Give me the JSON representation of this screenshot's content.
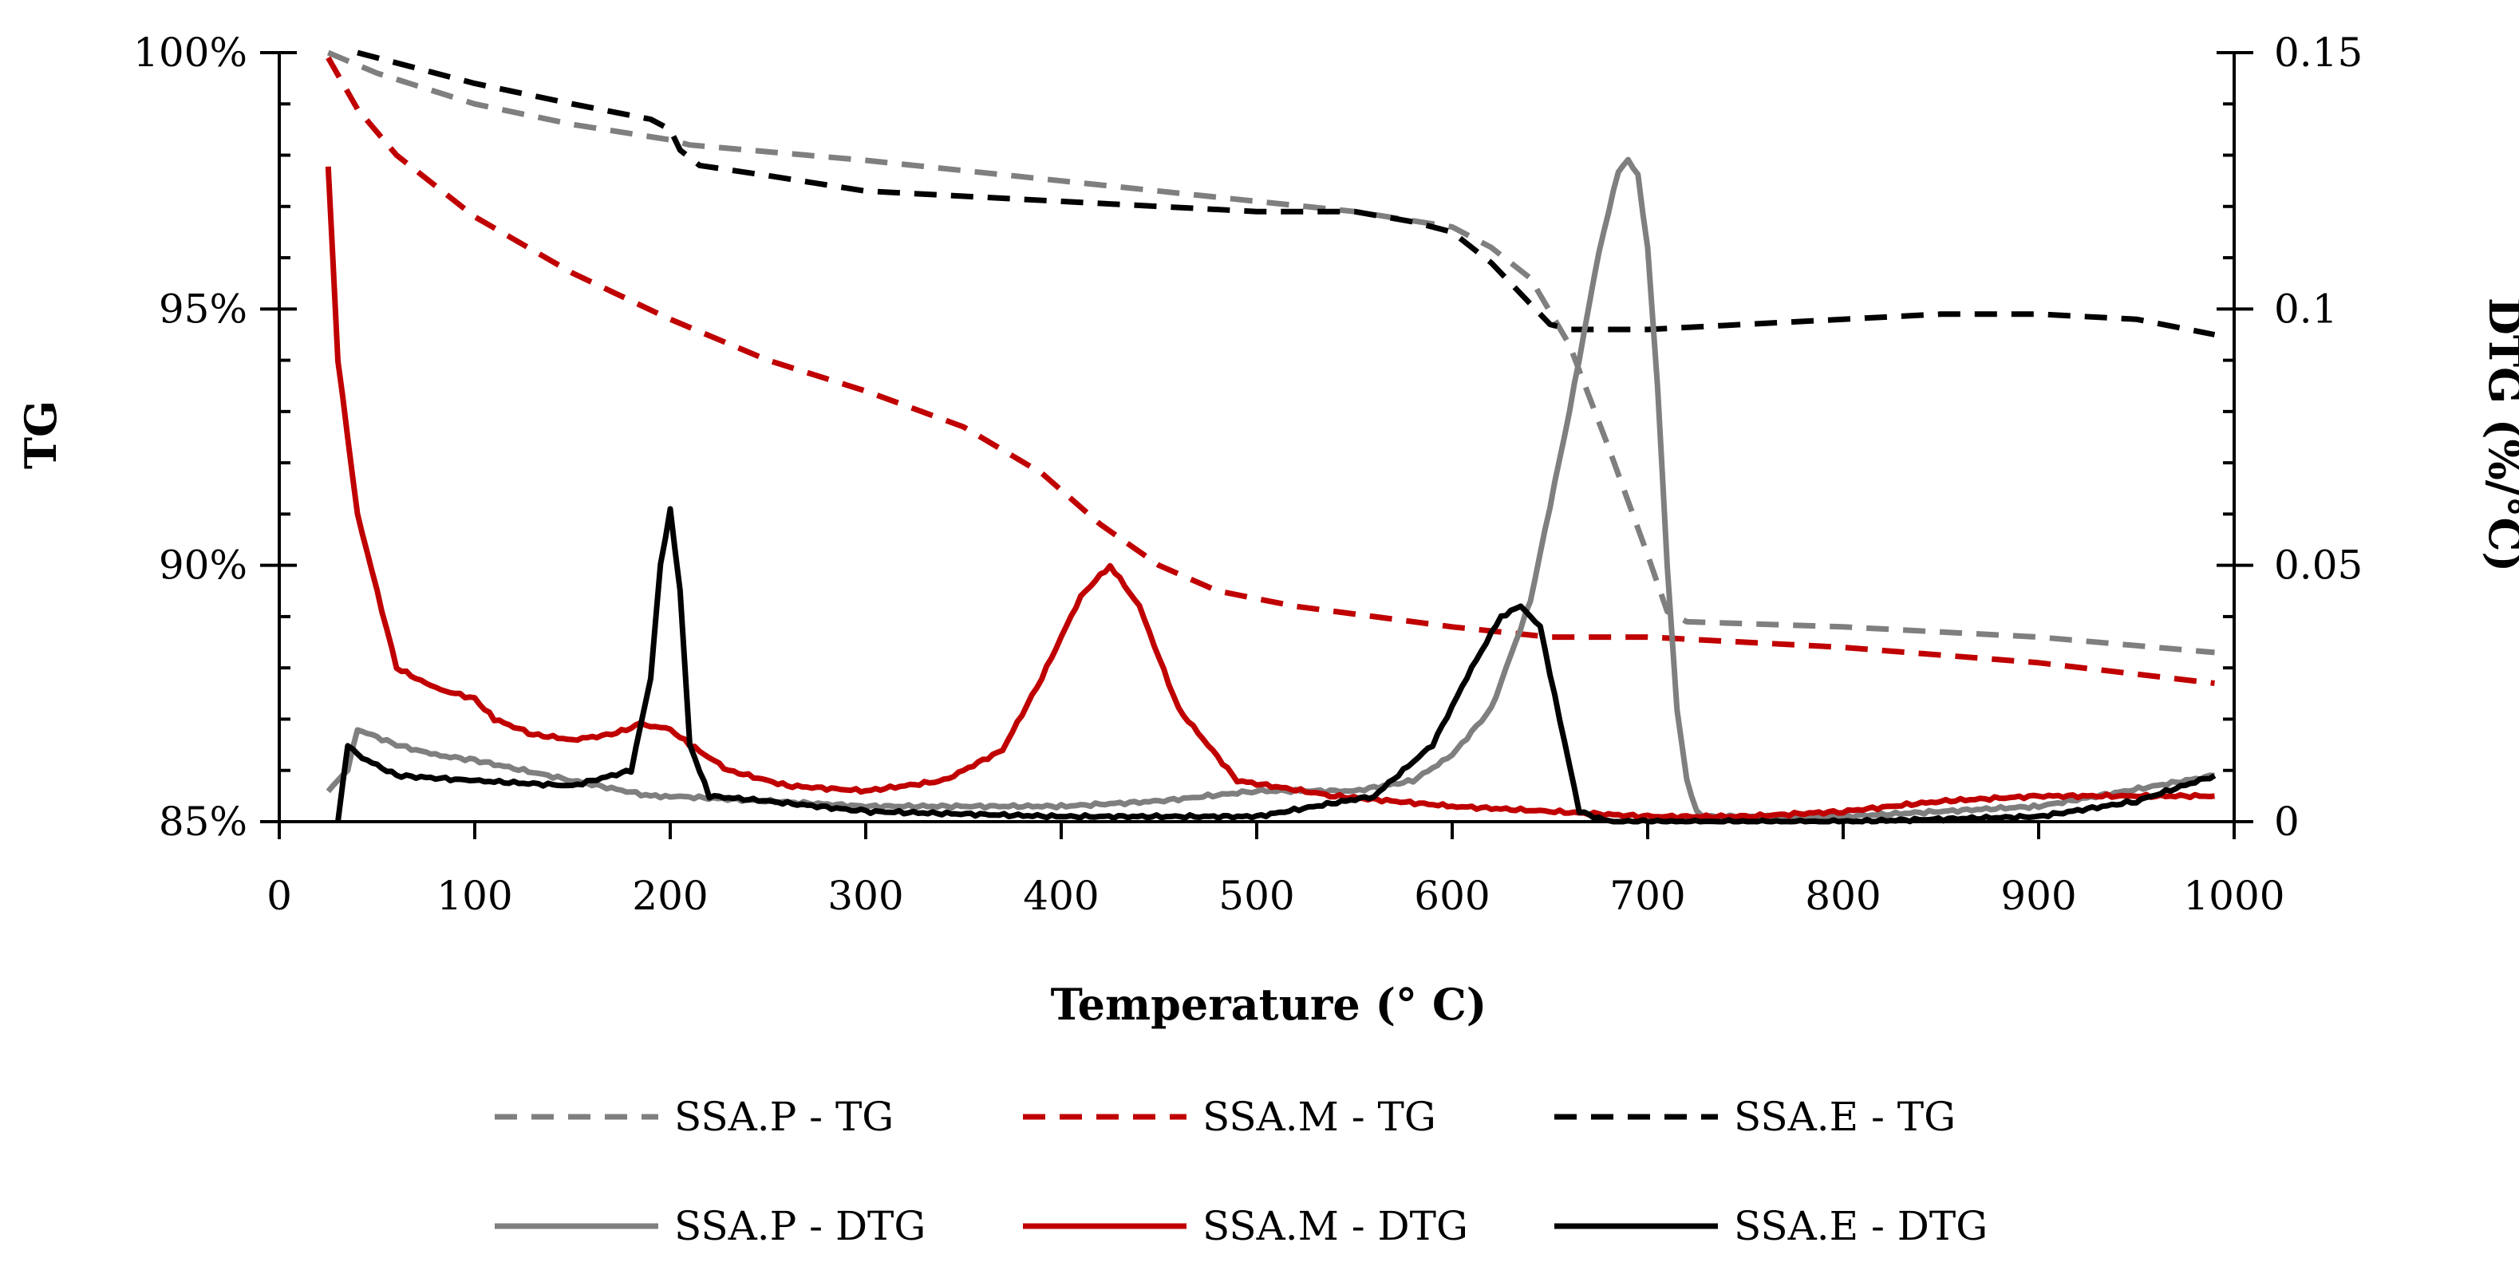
{
  "chart_data": {
    "type": "line",
    "title": "",
    "xlabel": "Temperature (° C)",
    "ylabel": "TG",
    "y2label": "DTG (%/°C)",
    "xlim": [
      0,
      1000
    ],
    "ylim": [
      85,
      100
    ],
    "y2lim": [
      0,
      0.15
    ],
    "xticks": [
      0,
      100,
      200,
      300,
      400,
      500,
      600,
      700,
      800,
      900,
      1000
    ],
    "xtick_labels": [
      "0",
      "100",
      "200",
      "300",
      "400",
      "500",
      "600",
      "700",
      "800",
      "900",
      "1000"
    ],
    "yticks": [
      85,
      90,
      95,
      100
    ],
    "ytick_labels": [
      "85%",
      "90%",
      "95%",
      "100%"
    ],
    "y2ticks": [
      0,
      0.05,
      0.1,
      0.15
    ],
    "y2tick_labels": [
      "0",
      "0.05",
      "0.1",
      "0.15"
    ],
    "grid": false,
    "legend_position": "bottom",
    "series": [
      {
        "name": "SSA.P - TG",
        "axis": "left",
        "color": "#7f7f7f",
        "style": "dashed",
        "x": [
          25,
          50,
          100,
          150,
          200,
          210,
          300,
          400,
          500,
          550,
          600,
          620,
          640,
          660,
          680,
          700,
          710,
          720,
          800,
          900,
          990
        ],
        "y": [
          100,
          99.6,
          99.0,
          98.6,
          98.3,
          98.2,
          97.9,
          97.5,
          97.1,
          96.9,
          96.6,
          96.2,
          95.6,
          94.3,
          92.3,
          90.2,
          89.1,
          88.9,
          88.8,
          88.6,
          88.3
        ]
      },
      {
        "name": "SSA.M - TG",
        "axis": "left",
        "color": "#c00000",
        "style": "dashed",
        "x": [
          25,
          40,
          60,
          100,
          150,
          200,
          250,
          300,
          350,
          390,
          420,
          450,
          480,
          520,
          560,
          600,
          650,
          700,
          800,
          900,
          990
        ],
        "y": [
          99.9,
          98.9,
          98.0,
          96.8,
          95.7,
          94.8,
          94.0,
          93.4,
          92.7,
          91.8,
          90.8,
          90.0,
          89.5,
          89.2,
          89.0,
          88.8,
          88.6,
          88.6,
          88.4,
          88.1,
          87.7
        ]
      },
      {
        "name": "SSA.E - TG",
        "axis": "left",
        "color": "#000000",
        "style": "dashed",
        "x": [
          40,
          100,
          150,
          190,
          200,
          205,
          215,
          250,
          300,
          400,
          500,
          550,
          580,
          600,
          620,
          640,
          650,
          660,
          700,
          800,
          850,
          900,
          950,
          990
        ],
        "y": [
          100,
          99.4,
          99.0,
          98.7,
          98.5,
          98.1,
          97.8,
          97.6,
          97.3,
          97.1,
          96.9,
          96.9,
          96.7,
          96.5,
          95.9,
          95.1,
          94.7,
          94.6,
          94.6,
          94.8,
          94.9,
          94.9,
          94.8,
          94.5
        ]
      },
      {
        "name": "SSA.P - DTG",
        "axis": "right",
        "color": "#7f7f7f",
        "style": "solid",
        "x": [
          25,
          35,
          40,
          60,
          80,
          100,
          150,
          190,
          200,
          300,
          400,
          450,
          500,
          550,
          580,
          600,
          620,
          640,
          660,
          675,
          685,
          690,
          695,
          700,
          705,
          710,
          715,
          720,
          725,
          730,
          800,
          900,
          990
        ],
        "y": [
          0.006,
          0.01,
          0.018,
          0.015,
          0.013,
          0.012,
          0.008,
          0.005,
          0.005,
          0.003,
          0.003,
          0.004,
          0.006,
          0.006,
          0.008,
          0.013,
          0.022,
          0.043,
          0.08,
          0.111,
          0.127,
          0.129,
          0.126,
          0.112,
          0.085,
          0.05,
          0.022,
          0.008,
          0.002,
          0.001,
          0.001,
          0.003,
          0.009
        ]
      },
      {
        "name": "SSA.M - DTG",
        "axis": "right",
        "color": "#c00000",
        "style": "solid",
        "x": [
          25,
          30,
          40,
          60,
          80,
          100,
          110,
          130,
          150,
          170,
          185,
          200,
          210,
          230,
          260,
          300,
          340,
          370,
          390,
          410,
          425,
          440,
          460,
          490,
          540,
          600,
          650,
          700,
          750,
          800,
          850,
          900,
          950,
          990
        ],
        "y": [
          0.128,
          0.09,
          0.06,
          0.03,
          0.026,
          0.024,
          0.02,
          0.017,
          0.016,
          0.017,
          0.019,
          0.018,
          0.015,
          0.01,
          0.007,
          0.006,
          0.008,
          0.014,
          0.028,
          0.044,
          0.05,
          0.042,
          0.022,
          0.008,
          0.005,
          0.003,
          0.002,
          0.001,
          0.001,
          0.002,
          0.004,
          0.005,
          0.005,
          0.005
        ]
      },
      {
        "name": "SSA.E - DTG",
        "axis": "right",
        "color": "#000000",
        "style": "solid",
        "x": [
          30,
          35,
          40,
          60,
          100,
          150,
          180,
          190,
          195,
          200,
          205,
          210,
          220,
          250,
          300,
          400,
          500,
          560,
          590,
          610,
          625,
          635,
          645,
          655,
          665,
          680,
          700,
          800,
          900,
          950,
          990
        ],
        "y": [
          0,
          0.015,
          0.013,
          0.009,
          0.008,
          0.007,
          0.01,
          0.028,
          0.05,
          0.061,
          0.045,
          0.015,
          0.005,
          0.004,
          0.002,
          0.001,
          0.001,
          0.005,
          0.015,
          0.03,
          0.04,
          0.042,
          0.038,
          0.02,
          0.002,
          0.0,
          0.0,
          0.0,
          0.001,
          0.004,
          0.009
        ]
      }
    ]
  }
}
